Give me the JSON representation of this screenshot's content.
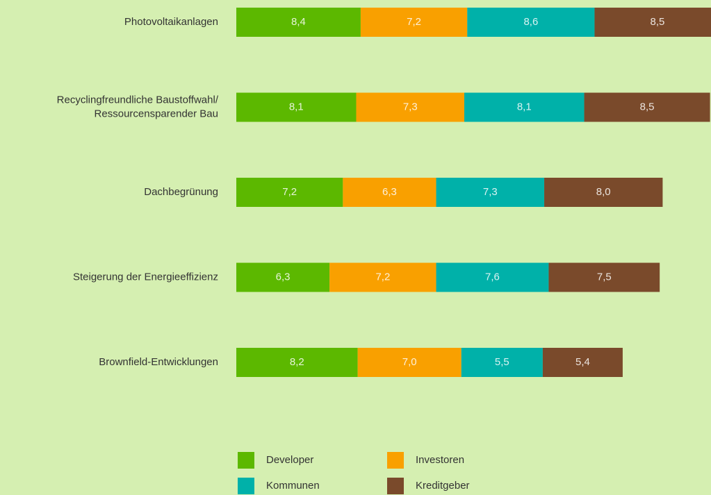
{
  "chart_data": {
    "type": "stacked-bar-horizontal",
    "categories": [
      [
        "Photovoltaikanlagen"
      ],
      [
        "Recyclingfreundliche Baustoffwahl/",
        "Ressourcensparender Bau"
      ],
      [
        "Dachbegrünung"
      ],
      [
        "Steigerung der Energieeffizienz"
      ],
      [
        "Brownfield-Entwicklungen"
      ]
    ],
    "series": [
      {
        "name": "Developer",
        "color": "#5cb800",
        "values": [
          8.4,
          8.1,
          7.2,
          6.3,
          8.2
        ],
        "value_labels": [
          "8,4",
          "8,1",
          "7,2",
          "6,3",
          "8,2"
        ]
      },
      {
        "name": "Investoren",
        "color": "#f9a000",
        "values": [
          7.2,
          7.3,
          6.3,
          7.2,
          7.0
        ],
        "value_labels": [
          "7,2",
          "7,3",
          "6,3",
          "7,2",
          "7,0"
        ]
      },
      {
        "name": "Kommunen",
        "color": "#00b1a9",
        "values": [
          8.6,
          8.1,
          7.3,
          7.6,
          5.5
        ],
        "value_labels": [
          "8,6",
          "8,1",
          "7,3",
          "7,6",
          "5,5"
        ]
      },
      {
        "name": "Kreditgeber",
        "color": "#7a4a2b",
        "values": [
          8.5,
          8.5,
          8.0,
          7.5,
          5.4
        ],
        "value_labels": [
          "8,5",
          "8,5",
          "8,0",
          "7,5",
          "5,4"
        ]
      }
    ]
  }
}
